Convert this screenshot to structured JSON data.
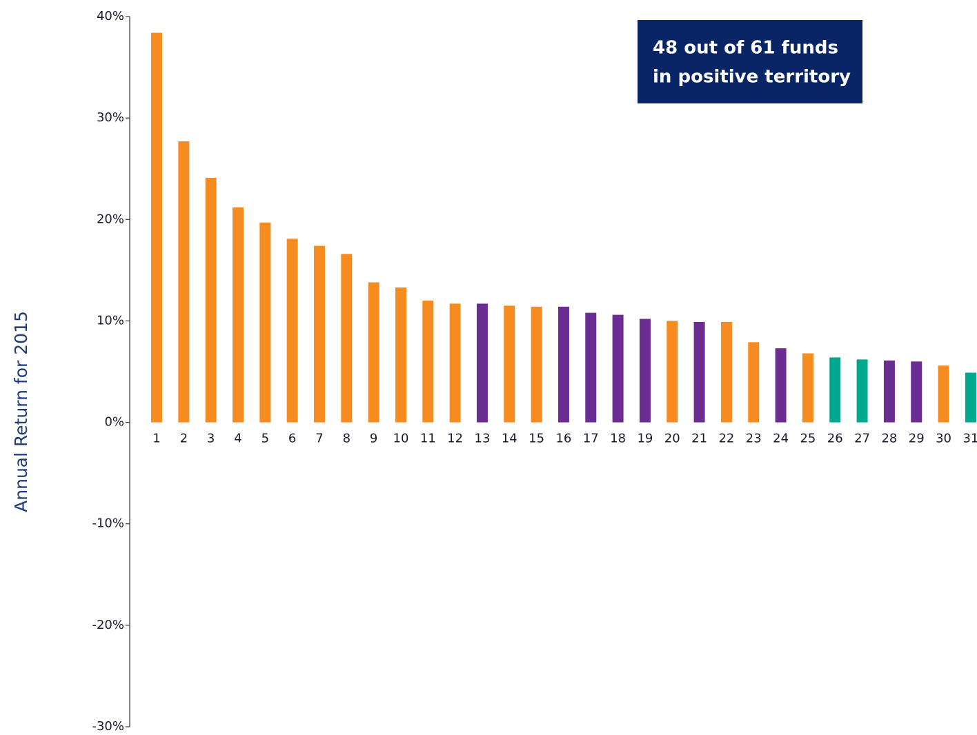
{
  "chart_data": {
    "type": "bar",
    "y_label": "Annual Return for 2015",
    "annotation": [
      "48 out of 61 funds",
      "in positive territory"
    ],
    "categories": [
      "1",
      "2",
      "3",
      "4",
      "5",
      "6",
      "7",
      "8",
      "9",
      "10",
      "11",
      "12",
      "13",
      "14",
      "15",
      "16",
      "17",
      "18",
      "19",
      "20",
      "21",
      "22",
      "23",
      "24",
      "25",
      "26",
      "27",
      "28",
      "29",
      "30",
      "31"
    ],
    "values": [
      38.4,
      27.7,
      24.1,
      21.2,
      19.7,
      18.1,
      17.4,
      16.6,
      13.8,
      13.3,
      12.0,
      11.7,
      11.7,
      11.5,
      11.4,
      11.4,
      10.8,
      10.6,
      10.2,
      10.0,
      9.9,
      9.9,
      7.9,
      7.3,
      6.8,
      6.4,
      6.2,
      6.1,
      6.0,
      5.6,
      4.9
    ],
    "colors": [
      "#f68b1f",
      "#f68b1f",
      "#f68b1f",
      "#f68b1f",
      "#f68b1f",
      "#f68b1f",
      "#f68b1f",
      "#f68b1f",
      "#f68b1f",
      "#f68b1f",
      "#f68b1f",
      "#f68b1f",
      "#6b2d91",
      "#f68b1f",
      "#f68b1f",
      "#6b2d91",
      "#6b2d91",
      "#6b2d91",
      "#6b2d91",
      "#f68b1f",
      "#6b2d91",
      "#f68b1f",
      "#f68b1f",
      "#6b2d91",
      "#f68b1f",
      "#00a88f",
      "#00a88f",
      "#6b2d91",
      "#6b2d91",
      "#f68b1f",
      "#00a88f"
    ],
    "ylim": [
      -30,
      40
    ],
    "yticks": [
      {
        "value": -30,
        "label": "-30%"
      },
      {
        "value": -20,
        "label": "-20%"
      },
      {
        "value": -10,
        "label": "-10%"
      },
      {
        "value": 0,
        "label": "0%"
      },
      {
        "value": 10,
        "label": "10%"
      },
      {
        "value": 20,
        "label": "20%"
      },
      {
        "value": 30,
        "label": "30%"
      },
      {
        "value": 40,
        "label": "40%"
      }
    ],
    "grid": false
  }
}
